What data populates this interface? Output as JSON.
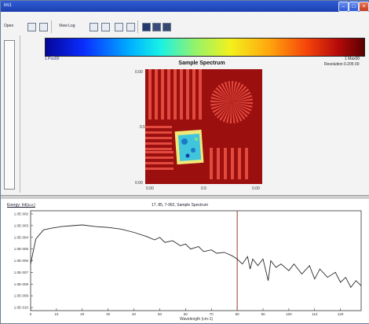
{
  "window": {
    "title": "im1",
    "btn_min": "–",
    "btn_max": "□",
    "btn_close": "×"
  },
  "toolbar": {
    "open_label": "Open",
    "view_label": "View Log"
  },
  "colorscale": {
    "min_label": "1 Pos00",
    "max_label": "1 Max00",
    "resolution": "Resolution 0.205 00"
  },
  "map": {
    "title": "Sample Spectrum",
    "tick_top": "0.00",
    "tick_mid": "0.5",
    "tick_bottom": "0.00",
    "tick_bl": "0.00",
    "tick_bc": "0.5",
    "tick_br": "0.00"
  },
  "spectrum": {
    "ylabel": "Energy: Int(a.u.)",
    "title": "17, 85, 7-962, Sample Spectrum",
    "xlabel": "Wavelength (cm-1)",
    "yticks": [
      "1.0E-002",
      "1.0E-003",
      "1.0E-004",
      "1.0E-005",
      "1.0E-006",
      "1.0E-007",
      "1.0E-008",
      "1.0E-009",
      "1.0E-010"
    ],
    "xticks": [
      "0",
      "10",
      "20",
      "30",
      "40",
      "50",
      "60",
      "70",
      "80",
      "90",
      "100",
      "110",
      "120"
    ],
    "cursor_x": 80
  },
  "chart_data": {
    "type": "line",
    "x": [
      0,
      2,
      5,
      8,
      12,
      16,
      20,
      25,
      30,
      35,
      40,
      45,
      48,
      50,
      52,
      55,
      58,
      60,
      62,
      65,
      67,
      70,
      72,
      75,
      78,
      80,
      82,
      84,
      85,
      86,
      88,
      90,
      92,
      93,
      95,
      97,
      100,
      102,
      105,
      108,
      110,
      112,
      115,
      118,
      120,
      122,
      124,
      126,
      128
    ],
    "series": [
      {
        "values": [
          -5.2,
          -3.7,
          -3.15,
          -3.05,
          -2.95,
          -2.9,
          -2.85,
          -2.95,
          -3.0,
          -3.1,
          -3.3,
          -3.55,
          -3.75,
          -3.6,
          -3.9,
          -3.8,
          -4.1,
          -4.0,
          -4.3,
          -4.15,
          -4.45,
          -4.35,
          -4.55,
          -4.5,
          -4.7,
          -4.9,
          -5.2,
          -4.75,
          -5.5,
          -4.9,
          -5.3,
          -4.9,
          -6.2,
          -5.0,
          -5.4,
          -5.2,
          -5.6,
          -5.2,
          -5.8,
          -5.3,
          -6.1,
          -5.5,
          -6.0,
          -5.7,
          -6.3,
          -6.0,
          -6.6,
          -6.2,
          -6.5
        ]
      }
    ],
    "ylim": [
      -8,
      -2
    ],
    "xlim": [
      0,
      128
    ],
    "grid": false,
    "xlabel": "Wavelength (cm-1)",
    "ylabel": "Energy: Int(a.u.)",
    "title": "17, 85, 7-962, Sample Spectrum"
  },
  "colors": {
    "map_bg": "#9b0f0f",
    "map_pattern": "#e24a3e",
    "curve": "#2a2a2a",
    "cursor": "#9a3a2e"
  }
}
